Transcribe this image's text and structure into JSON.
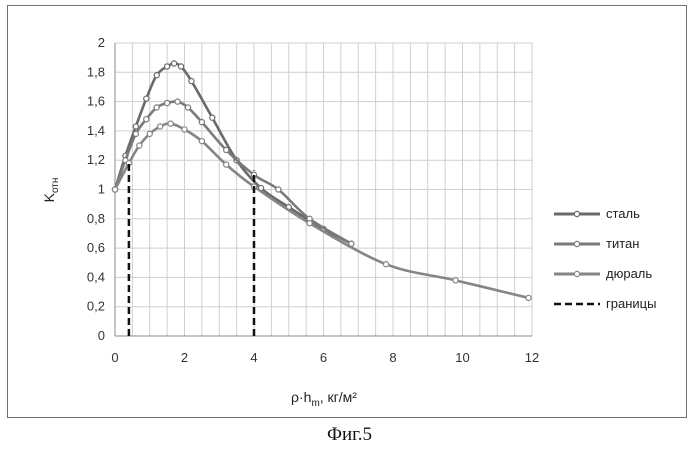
{
  "figure_caption": "Фиг.5",
  "chart_data": {
    "type": "line",
    "xlabel": {
      "main": "ρ·h",
      "sub": "m",
      "rest": ", кг/м²"
    },
    "ylabel": {
      "main": "K",
      "sub": "отн"
    },
    "xlim": [
      0,
      12
    ],
    "ylim": [
      0,
      2
    ],
    "x_ticks": [
      0,
      2,
      4,
      6,
      8,
      10,
      12
    ],
    "y_ticks": [
      "0",
      "0,2",
      "0,4",
      "0,6",
      "0,8",
      "1",
      "1,2",
      "1,4",
      "1,6",
      "1,8",
      "2"
    ],
    "grid": true,
    "legend_position": "right",
    "series": [
      {
        "name": "сталь",
        "color": "#6a6a6a",
        "style": "solid-markers",
        "points": [
          [
            0,
            1.0
          ],
          [
            0.3,
            1.23
          ],
          [
            0.6,
            1.43
          ],
          [
            0.9,
            1.62
          ],
          [
            1.2,
            1.78
          ],
          [
            1.5,
            1.84
          ],
          [
            1.7,
            1.86
          ],
          [
            1.9,
            1.84
          ],
          [
            2.2,
            1.74
          ],
          [
            2.8,
            1.49
          ],
          [
            3.5,
            1.2
          ],
          [
            4.2,
            1.01
          ],
          [
            5.0,
            0.88
          ],
          [
            6.0,
            0.73
          ],
          [
            6.8,
            0.63
          ]
        ]
      },
      {
        "name": "титан",
        "color": "#7a7a7a",
        "style": "solid-markers",
        "points": [
          [
            0,
            1.0
          ],
          [
            0.3,
            1.2
          ],
          [
            0.6,
            1.38
          ],
          [
            0.9,
            1.48
          ],
          [
            1.2,
            1.56
          ],
          [
            1.5,
            1.59
          ],
          [
            1.8,
            1.6
          ],
          [
            2.1,
            1.56
          ],
          [
            2.5,
            1.46
          ],
          [
            3.2,
            1.27
          ],
          [
            4.0,
            1.1
          ],
          [
            4.7,
            1.0
          ],
          [
            5.6,
            0.8
          ],
          [
            6.8,
            0.63
          ]
        ]
      },
      {
        "name": "дюраль",
        "color": "#858585",
        "style": "solid-markers",
        "points": [
          [
            0,
            1.0
          ],
          [
            0.4,
            1.18
          ],
          [
            0.7,
            1.3
          ],
          [
            1.0,
            1.38
          ],
          [
            1.3,
            1.43
          ],
          [
            1.6,
            1.45
          ],
          [
            2.0,
            1.41
          ],
          [
            2.5,
            1.33
          ],
          [
            3.2,
            1.17
          ],
          [
            4.0,
            1.02
          ],
          [
            5.6,
            0.77
          ],
          [
            7.8,
            0.49
          ],
          [
            9.8,
            0.38
          ],
          [
            11.9,
            0.26
          ]
        ]
      },
      {
        "name": "границы",
        "color": "#111111",
        "style": "dashed",
        "lines": [
          {
            "x": 0.4,
            "y_top": 1.18
          },
          {
            "x": 4.0,
            "y_top": 1.13
          }
        ]
      }
    ]
  }
}
